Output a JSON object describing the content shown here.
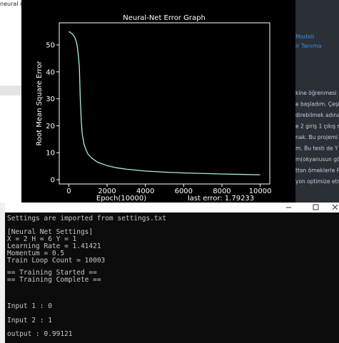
{
  "browser_tab": {
    "title": "neural net"
  },
  "article": {
    "links": [
      "Modeli",
      "ir Tanıma"
    ],
    "lines": [
      "kine öğrenmesi",
      "e başladım. Çeşi",
      "direbilmek adına",
      "e 2 giriş 1 çıkış n",
      "nak. Bu projemi",
      "m. Bu testi de Y",
      "m(okyanusun gö",
      "ttan örneklerle F",
      "yon optimize etr"
    ]
  },
  "chart_data": {
    "type": "line",
    "title": "Neural-Net Error Graph",
    "x_label": "Epoch(10000)",
    "y_label": "Root Mean Square Error",
    "annotation": "last error: 1.79233",
    "x": [
      0,
      100,
      200,
      300,
      400,
      450,
      500,
      550,
      600,
      650,
      700,
      800,
      900,
      1000,
      1200,
      1500,
      2000,
      2500,
      3000,
      4000,
      5000,
      6000,
      7000,
      8000,
      9000,
      10000
    ],
    "series": [
      {
        "name": "error",
        "color": "#a8f0dc",
        "values": [
          55,
          54.5,
          54,
          53,
          51,
          49,
          46,
          42,
          30,
          22,
          17,
          13,
          11,
          9.5,
          8,
          6.5,
          5.2,
          4.4,
          3.9,
          3.2,
          2.8,
          2.5,
          2.3,
          2.1,
          1.95,
          1.8
        ]
      }
    ],
    "xlim": [
      -500,
      10500
    ],
    "ylim": [
      -1.6,
      58.2
    ],
    "xticks": [
      0,
      2000,
      4000,
      6000,
      8000,
      10000
    ],
    "yticks": [
      0,
      10,
      20,
      30,
      40,
      50
    ]
  },
  "console": {
    "lines": [
      "Settings are imported from settings.txt",
      "[Neural Net Settings]",
      "X = 2  H = 6  Y = 1",
      "Learning Rate = 1.41421",
      "Momentum = 0.5",
      "Train Loop Count = 10003",
      "== Training Started ==",
      "== Training Complete ==",
      "Input 1 : 0",
      "Input 2 : 1",
      "output : 0.99121"
    ]
  }
}
